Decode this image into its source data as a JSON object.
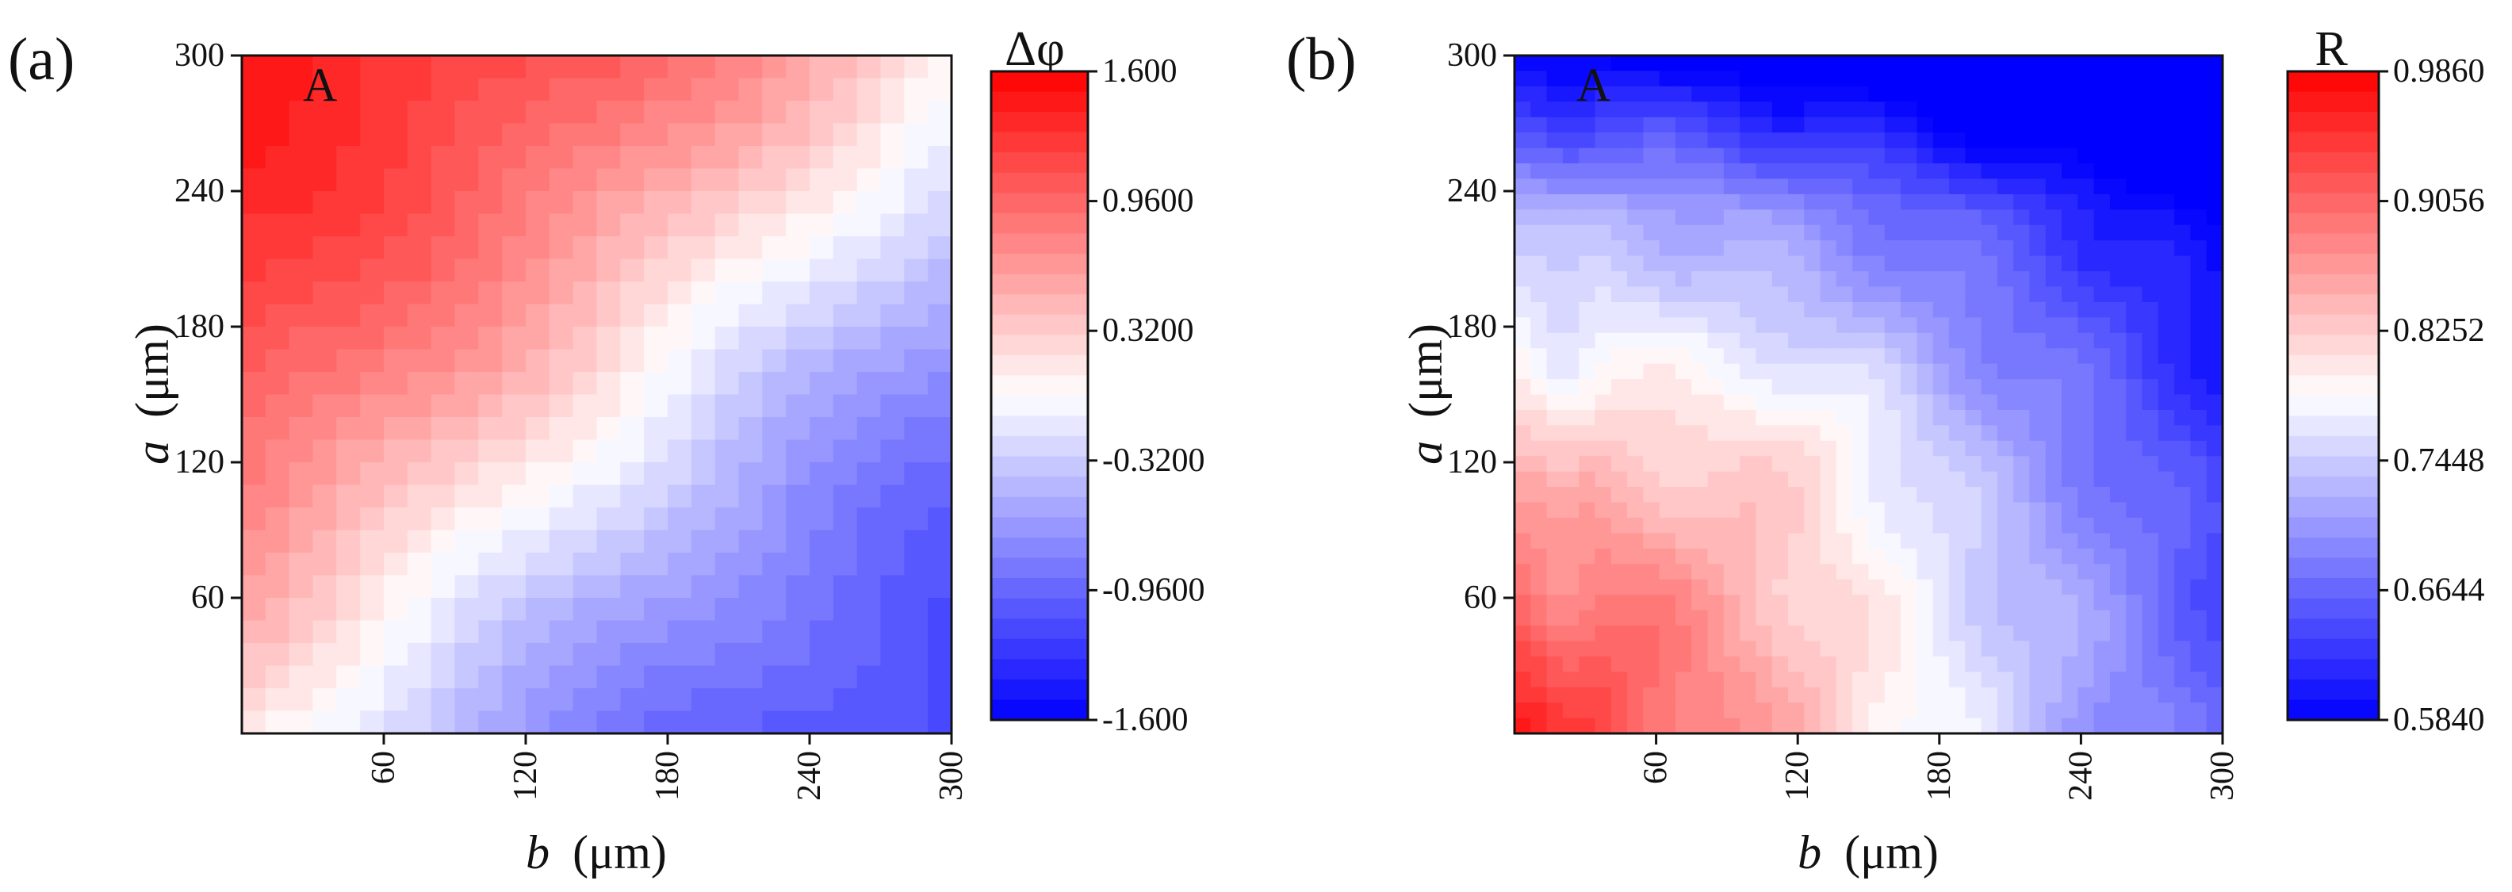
{
  "chart_data": [
    {
      "type": "heatmap",
      "panel_label": "(a)",
      "inner_label": "A",
      "xlabel_var": "b",
      "xlabel_unit": "(μm)",
      "ylabel_var": "a",
      "ylabel_unit": "(μm)",
      "xlim": [
        0,
        300
      ],
      "ylim": [
        0,
        300
      ],
      "x_ticks": [
        60,
        120,
        180,
        240,
        300
      ],
      "x_tick_labels": [
        "60",
        "120",
        "180",
        "240",
        "300"
      ],
      "y_ticks": [
        60,
        120,
        180,
        240,
        300
      ],
      "y_tick_labels": [
        "60",
        "120",
        "180",
        "240",
        "300"
      ],
      "grid_n": 30,
      "field": "phase_difference",
      "colorbar": {
        "title": "Δφ",
        "min": -1.6,
        "max": 1.6,
        "levels": 32,
        "tick_values": [
          1.6,
          0.96,
          0.32,
          -0.32,
          -0.96,
          -1.6
        ],
        "tick_labels": [
          "1.600",
          "0.9600",
          "0.3200",
          "-0.3200",
          "-0.9600",
          "-1.600"
        ],
        "colors": {
          "low": "#0000ff",
          "mid": "#ffffff",
          "high": "#ff0000"
        }
      }
    },
    {
      "type": "heatmap",
      "panel_label": "(b)",
      "inner_label": "A",
      "xlabel_var": "b",
      "xlabel_unit": "(μm)",
      "ylabel_var": "a",
      "ylabel_unit": "(μm)",
      "xlim": [
        0,
        300
      ],
      "ylim": [
        0,
        300
      ],
      "x_ticks": [
        60,
        120,
        180,
        240,
        300
      ],
      "x_tick_labels": [
        "60",
        "120",
        "180",
        "240",
        "300"
      ],
      "y_ticks": [
        60,
        120,
        180,
        240,
        300
      ],
      "y_tick_labels": [
        "60",
        "120",
        "180",
        "240",
        "300"
      ],
      "grid_n": 44,
      "field": "reflectance",
      "colorbar": {
        "title": "R",
        "min": 0.584,
        "max": 0.986,
        "levels": 32,
        "tick_values": [
          0.986,
          0.9056,
          0.8252,
          0.7448,
          0.6644,
          0.584
        ],
        "tick_labels": [
          "0.9860",
          "0.9056",
          "0.8252",
          "0.7448",
          "0.6644",
          "0.5840"
        ],
        "colors": {
          "low": "#0000ff",
          "mid": "#ffffff",
          "high": "#ff0000"
        }
      }
    }
  ]
}
